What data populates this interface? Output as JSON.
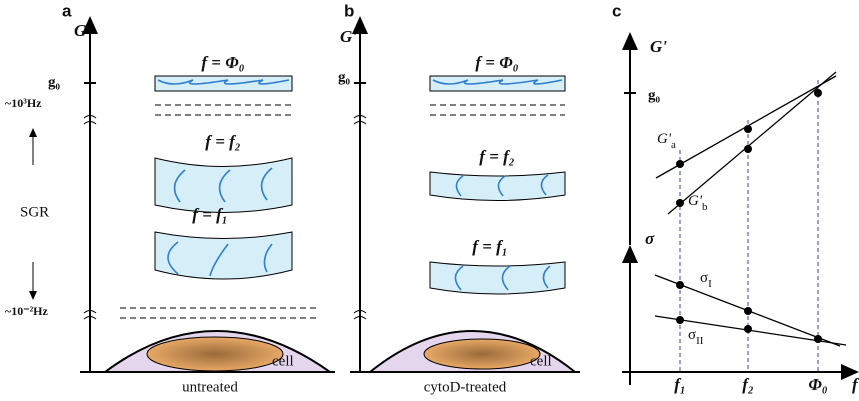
{
  "panels": [
    {
      "label": "a",
      "axis_label": "G'",
      "tick": "g₀",
      "high_freq": "~10³Hz",
      "low_freq": "~10⁻²Hz",
      "range_label": "SGR",
      "bands": [
        "f = Φ₀",
        "f = f₂",
        "f = f₁"
      ],
      "cell": "cell",
      "caption": "untreated"
    },
    {
      "label": "b",
      "axis_label": "G'",
      "tick": "g₀",
      "bands": [
        "f = Φ₀",
        "f = f₂",
        "f = f₁"
      ],
      "cell": "cell",
      "caption": "cytoD-treated"
    },
    {
      "label": "c",
      "upper_axis_label": "G'",
      "tick": "g₀",
      "lower_axis_label": "σ",
      "x_axis_label": "f",
      "x_ticks": [
        "f₁",
        "f₂",
        "Φ₀"
      ],
      "lines": [
        {
          "text": "G'",
          "sub": "a"
        },
        {
          "text": "G'",
          "sub": "b"
        },
        {
          "text": "σ",
          "sub": "I"
        },
        {
          "text": "σ",
          "sub": "II"
        }
      ]
    }
  ]
}
